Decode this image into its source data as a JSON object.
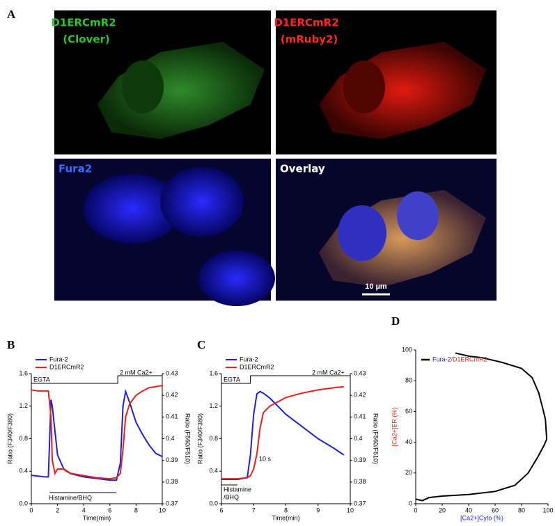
{
  "figure": {
    "panel": "A",
    "images": [
      {
        "label": [
          "D1ERCmR2",
          "(Clover)"
        ]
      },
      {
        "label": [
          "D1ERCmR2",
          "(mRuby2)"
        ]
      },
      {
        "label": [
          "Fura2"
        ]
      },
      {
        "label": [
          "Overlay"
        ]
      }
    ],
    "scale_bar": "10 µm"
  },
  "chart_data": [
    {
      "type": "line",
      "panel": "B",
      "x": [
        0,
        0.5,
        1,
        1.3,
        1.5,
        1.6,
        1.8,
        2,
        2.5,
        3,
        4,
        5,
        6,
        6.5,
        6.8,
        7,
        7.2,
        7.5,
        8,
        8.5,
        9,
        9.5,
        10
      ],
      "series": [
        {
          "name": "Fura-2",
          "color": "#1f1fd6",
          "values": [
            0.35,
            0.34,
            0.33,
            0.33,
            1.28,
            1.2,
            0.9,
            0.6,
            0.42,
            0.37,
            0.33,
            0.31,
            0.29,
            0.29,
            0.5,
            1.2,
            1.38,
            1.25,
            1.0,
            0.85,
            0.72,
            0.62,
            0.58
          ]
        },
        {
          "name": "D1ERCmR2",
          "color": "#e8201c",
          "axis": "y2",
          "values": [
            0.4225,
            0.422,
            0.422,
            0.422,
            0.41,
            0.39,
            0.384,
            0.386,
            0.386,
            0.384,
            0.383,
            0.382,
            0.3815,
            0.382,
            0.384,
            0.395,
            0.41,
            0.416,
            0.42,
            0.422,
            0.4235,
            0.424,
            0.4245
          ]
        }
      ],
      "xlim": [
        0,
        10
      ],
      "xticks": [
        0,
        2,
        4,
        6,
        8,
        10
      ],
      "ylim": [
        0,
        1.6
      ],
      "yticks": [
        {
          "value": 0,
          "label": "0.0"
        },
        0.4,
        0.8,
        1.2,
        1.6
      ],
      "y2lim": [
        0.37,
        0.43
      ],
      "y2ticks": [
        0.37,
        0.38,
        0.39,
        0.4,
        0.41,
        0.42,
        0.43
      ],
      "xlabel": "Time(min)",
      "ylabel": "Ratio (F340/F380)",
      "y2label": "Ratio (F560/F510)",
      "annotations": [
        "EGTA",
        "2 mM Ca2+",
        "Histamine/BHQ"
      ]
    },
    {
      "type": "line",
      "panel": "C",
      "x": [
        6,
        6.5,
        6.8,
        6.9,
        7,
        7.1,
        7.2,
        7.3,
        7.5,
        8,
        8.5,
        9,
        9.5,
        9.8
      ],
      "series": [
        {
          "name": "Fura-2",
          "color": "#1f1fd6",
          "values": [
            0.3,
            0.3,
            0.32,
            0.6,
            1.1,
            1.35,
            1.38,
            1.36,
            1.3,
            1.1,
            0.95,
            0.8,
            0.68,
            0.6
          ]
        },
        {
          "name": "D1ERCmR2",
          "color": "#e8201c",
          "axis": "y2",
          "values": [
            0.3815,
            0.3815,
            0.382,
            0.383,
            0.386,
            0.393,
            0.405,
            0.412,
            0.415,
            0.419,
            0.421,
            0.4225,
            0.4235,
            0.424
          ]
        }
      ],
      "xlim": [
        6,
        10
      ],
      "xticks": [
        6,
        7,
        8,
        9,
        10
      ],
      "ylim": [
        0,
        1.6
      ],
      "yticks": [
        {
          "value": 0,
          "label": "0.0"
        },
        0.4,
        0.8,
        1.2,
        1.6
      ],
      "y2lim": [
        0.37,
        0.43
      ],
      "y2ticks": [
        0.37,
        0.38,
        0.39,
        0.4,
        0.41,
        0.42,
        0.43
      ],
      "xlabel": "Time(min)",
      "ylabel": "Ratio (F340/F380)",
      "y2label": "Ratio (F560/F510)",
      "annotations": [
        "EGTA",
        "2 mM Ca2+",
        "Histamine",
        "/BHQ",
        "10 s"
      ]
    },
    {
      "type": "line",
      "panel": "D",
      "x": [
        0,
        5,
        10,
        20,
        40,
        60,
        75,
        85,
        92,
        97,
        99,
        98,
        96,
        93,
        88,
        80,
        65,
        50,
        40,
        30
      ],
      "series": [
        {
          "color": "#000000",
          "values": [
            3,
            2,
            4,
            5,
            6,
            8,
            12,
            20,
            30,
            38,
            42,
            55,
            62,
            72,
            82,
            88,
            92,
            95,
            96,
            98
          ]
        }
      ],
      "legend": [
        "Fura-2",
        "/D1ERCmR2"
      ],
      "xlim": [
        0,
        100
      ],
      "xticks": [
        0,
        20,
        40,
        60,
        80,
        100
      ],
      "ylim": [
        0,
        100
      ],
      "yticks": [
        0,
        20,
        40,
        60,
        80,
        100
      ],
      "xlabel": "[Ca2+]Cyto (%)",
      "ylabel": "[Ca2+]ER (%)",
      "annotations": []
    }
  ]
}
